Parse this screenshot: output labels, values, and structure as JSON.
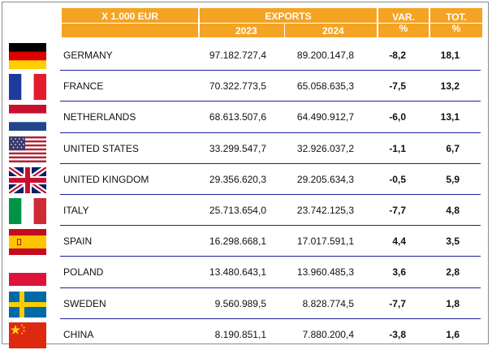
{
  "header": {
    "unit": "X 1.000 EUR",
    "exports": "EXPORTS",
    "year_2023": "2023",
    "year_2024": "2024",
    "var_line1": "VAR.",
    "var_line2": "%",
    "tot_line1": "TOT.",
    "tot_line2": "%"
  },
  "colors": {
    "header_bg": "#f4a323",
    "separator": "#1f1f9a"
  },
  "rows": [
    {
      "flag": "germany-flag-icon",
      "country": "GERMANY",
      "y2023": "97.182.727,4",
      "y2024": "89.200.147,8",
      "var": "-8,2",
      "tot": "18,1"
    },
    {
      "flag": "france-flag-icon",
      "country": "FRANCE",
      "y2023": "70.322.773,5",
      "y2024": "65.058.635,3",
      "var": "-7,5",
      "tot": "13,2"
    },
    {
      "flag": "netherlands-flag-icon",
      "country": "NETHERLANDS",
      "y2023": "68.613.507,6",
      "y2024": "64.490.912,7",
      "var": "-6,0",
      "tot": "13,1"
    },
    {
      "flag": "usa-flag-icon",
      "country": "UNITED STATES",
      "y2023": "33.299.547,7",
      "y2024": "32.926.037,2",
      "var": "-1,1",
      "tot": "6,7"
    },
    {
      "flag": "uk-flag-icon",
      "country": "UNITED KINGDOM",
      "y2023": "29.356.620,3",
      "y2024": "29.205.634,3",
      "var": "-0,5",
      "tot": "5,9"
    },
    {
      "flag": "italy-flag-icon",
      "country": "ITALY",
      "y2023": "25.713.654,0",
      "y2024": "23.742.125,3",
      "var": "-7,7",
      "tot": "4,8"
    },
    {
      "flag": "spain-flag-icon",
      "country": "SPAIN",
      "y2023": "16.298.668,1",
      "y2024": "17.017.591,1",
      "var": "4,4",
      "tot": "3,5"
    },
    {
      "flag": "poland-flag-icon",
      "country": "POLAND",
      "y2023": "13.480.643,1",
      "y2024": "13.960.485,3",
      "var": "3,6",
      "tot": "2,8"
    },
    {
      "flag": "sweden-flag-icon",
      "country": "SWEDEN",
      "y2023": "9.560.989,5",
      "y2024": "8.828.774,5",
      "var": "-7,7",
      "tot": "1,8"
    },
    {
      "flag": "china-flag-icon",
      "country": "CHINA",
      "y2023": "8.190.851,1",
      "y2024": "7.880.200,4",
      "var": "-3,8",
      "tot": "1,6"
    }
  ]
}
